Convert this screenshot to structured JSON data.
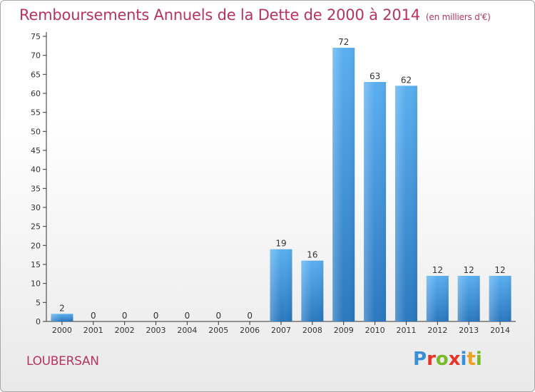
{
  "title": "Remboursements Annuels de la Dette de 2000 à 2014",
  "subtitle": "(en milliers d'€)",
  "commune": "LOUBERSAN",
  "logo": {
    "text": "Proxiti",
    "letter_colors": [
      "#3a8fd8",
      "#e8332a",
      "#7ab929",
      "#e8332a",
      "#3a8fd8",
      "#f0a020",
      "#7ab929"
    ]
  },
  "colors": {
    "title": "#b5355f",
    "bar_top": "#5aaff0",
    "bar_bottom": "#2a78c0",
    "axis": "#333333",
    "grid": "#dddddd"
  },
  "chart_data": {
    "type": "bar",
    "categories": [
      "2000",
      "2001",
      "2002",
      "2003",
      "2004",
      "2005",
      "2006",
      "2007",
      "2008",
      "2009",
      "2010",
      "2011",
      "2012",
      "2013",
      "2014"
    ],
    "values": [
      2,
      0,
      0,
      0,
      0,
      0,
      0,
      19,
      16,
      72,
      63,
      62,
      12,
      12,
      12
    ],
    "title": "Remboursements Annuels de la Dette de 2000 à 2014",
    "subtitle": "(en milliers d'€)",
    "ylim": [
      0,
      75
    ],
    "yticks": [
      0,
      5,
      10,
      15,
      20,
      25,
      30,
      35,
      40,
      45,
      50,
      55,
      60,
      65,
      70,
      75
    ],
    "grid": false
  }
}
